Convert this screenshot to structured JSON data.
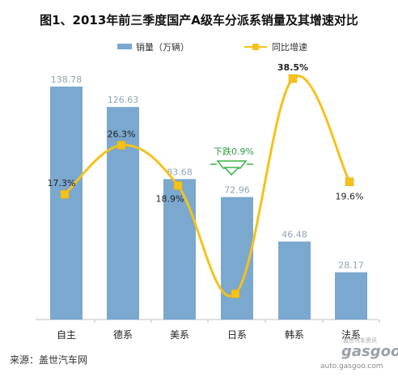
{
  "title": "图1、2013年前三季度国产A级车分派系销量及其增速对比",
  "footer": "来源：盖世汽车网",
  "watermark": {
    "brand": "gasgoo",
    "small": "盖世汽车资讯",
    "url": "auto.gasgoo.com"
  },
  "annotation": "下跌0.9%",
  "colors": {
    "bar": "#7aa8cf",
    "line": "#f5c21b",
    "bar_label": "#8fa3b6",
    "arrow": "#3bb24a"
  },
  "chart_data": {
    "type": "bar",
    "categories": [
      "自主",
      "德系",
      "美系",
      "日系",
      "韩系",
      "法系"
    ],
    "series": [
      {
        "name": "销量（万辆）",
        "type": "bar",
        "axis": "left",
        "values": [
          138.78,
          126.63,
          83.68,
          72.96,
          46.48,
          28.17
        ],
        "labels": [
          "138.78",
          "126.63",
          "83.68",
          "72.96",
          "46.48",
          "28.17"
        ]
      },
      {
        "name": "同比增速",
        "type": "line",
        "axis": "right",
        "smooth": true,
        "values": [
          17.3,
          26.3,
          18.9,
          -0.9,
          38.5,
          19.6
        ],
        "labels": [
          "17.3%",
          "26.3%",
          "18.9%",
          "",
          "38.5%",
          "19.6%"
        ]
      }
    ],
    "legend_position": "top",
    "grid": false
  }
}
